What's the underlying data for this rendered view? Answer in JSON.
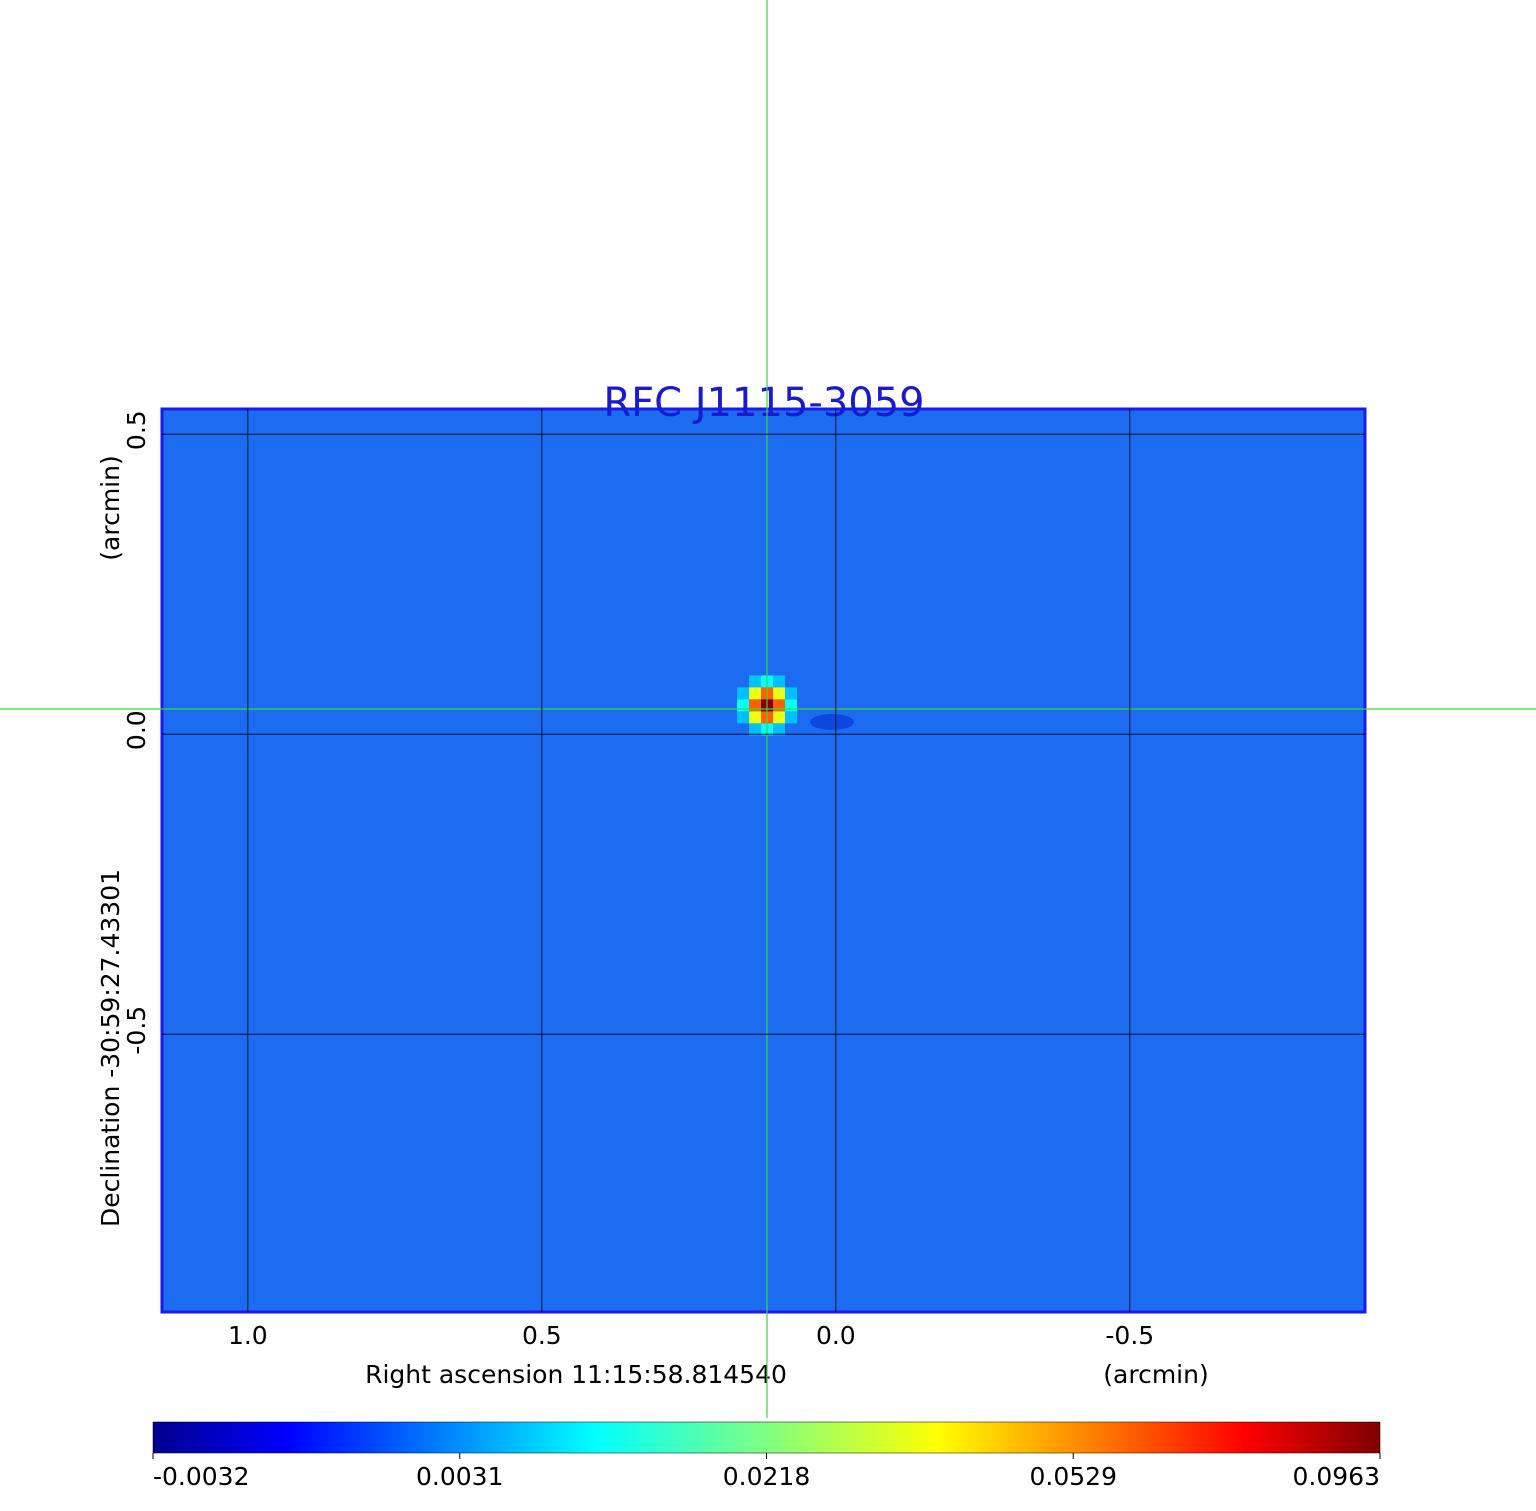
{
  "chart_data": {
    "type": "image",
    "title": "RFC J1115-3059",
    "x_label": "Right ascension  11:15:58.814540",
    "x_unit": "(arcmin)",
    "y_label": "Declination  -30:59:27.43301",
    "y_unit": "(arcmin)",
    "xlim": [
      1.146,
      -0.9
    ],
    "ylim": [
      -0.963,
      0.542
    ],
    "xticks": [
      {
        "value": 1,
        "label": "1.0"
      },
      0.5,
      {
        "value": 0,
        "label": "0.0"
      },
      -0.5
    ],
    "yticks": [
      0.5,
      {
        "value": 0,
        "label": "0.0"
      },
      -0.5
    ],
    "grid": true,
    "colorbar": {
      "ticks": [
        -0.0032,
        0.0031,
        0.0218,
        0.0529,
        0.0963
      ]
    },
    "sources": [
      {
        "x": 0.117,
        "y": 0.048,
        "peak": 0.0963
      }
    ]
  }
}
